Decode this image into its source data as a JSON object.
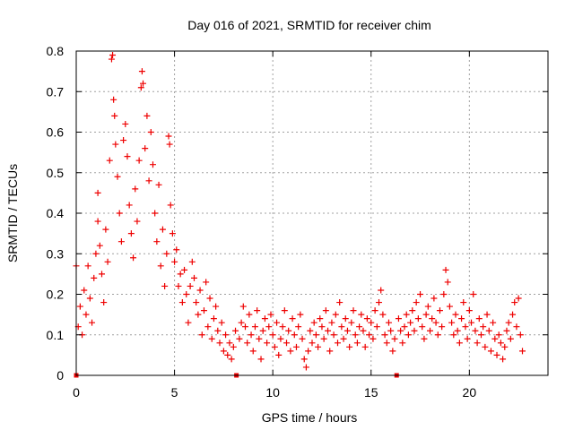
{
  "colors": {
    "series": "#ee0000",
    "grid": "#a0a0a0",
    "axis": "#000000"
  },
  "chart_data": {
    "type": "scatter",
    "title": "Day 016 of 2021, SRMTID for receiver chim",
    "xlabel": "GPS time / hours",
    "ylabel": "SRMTID / TECUs",
    "xlim": [
      0,
      24
    ],
    "ylim": [
      0,
      0.8
    ],
    "x_ticks": [
      0,
      5,
      10,
      15,
      20
    ],
    "x_tick_labels": [
      "0",
      "5",
      "10",
      "15",
      "20"
    ],
    "y_ticks": [
      0,
      0.1,
      0.2,
      0.3,
      0.4,
      0.5,
      0.6,
      0.7,
      0.8
    ],
    "y_tick_labels": [
      "0",
      "0.1",
      "0.2",
      "0.3",
      "0.4",
      "0.5",
      "0.6",
      "0.7",
      "0.8"
    ],
    "grid": true,
    "marker": "+",
    "gap_markers_x": [
      0,
      8.15,
      16.3
    ],
    "series": [
      {
        "name": "SRMTID",
        "points": [
          [
            0.0,
            0.27
          ],
          [
            0.1,
            0.12
          ],
          [
            0.2,
            0.17
          ],
          [
            0.3,
            0.1
          ],
          [
            0.4,
            0.21
          ],
          [
            0.5,
            0.15
          ],
          [
            0.6,
            0.27
          ],
          [
            0.7,
            0.19
          ],
          [
            0.8,
            0.13
          ],
          [
            0.9,
            0.24
          ],
          [
            1.0,
            0.3
          ],
          [
            1.1,
            0.45
          ],
          [
            1.1,
            0.38
          ],
          [
            1.2,
            0.32
          ],
          [
            1.3,
            0.25
          ],
          [
            1.4,
            0.18
          ],
          [
            1.5,
            0.36
          ],
          [
            1.6,
            0.28
          ],
          [
            1.7,
            0.53
          ],
          [
            1.8,
            0.78
          ],
          [
            1.85,
            0.79
          ],
          [
            1.9,
            0.68
          ],
          [
            1.95,
            0.64
          ],
          [
            2.0,
            0.57
          ],
          [
            2.1,
            0.49
          ],
          [
            2.2,
            0.4
          ],
          [
            2.3,
            0.33
          ],
          [
            2.4,
            0.58
          ],
          [
            2.5,
            0.62
          ],
          [
            2.6,
            0.54
          ],
          [
            2.7,
            0.42
          ],
          [
            2.8,
            0.35
          ],
          [
            2.9,
            0.29
          ],
          [
            3.0,
            0.46
          ],
          [
            3.1,
            0.38
          ],
          [
            3.2,
            0.53
          ],
          [
            3.3,
            0.71
          ],
          [
            3.35,
            0.75
          ],
          [
            3.4,
            0.72
          ],
          [
            3.5,
            0.56
          ],
          [
            3.6,
            0.64
          ],
          [
            3.7,
            0.48
          ],
          [
            3.8,
            0.6
          ],
          [
            3.9,
            0.52
          ],
          [
            4.0,
            0.4
          ],
          [
            4.1,
            0.33
          ],
          [
            4.2,
            0.47
          ],
          [
            4.3,
            0.27
          ],
          [
            4.4,
            0.36
          ],
          [
            4.5,
            0.22
          ],
          [
            4.6,
            0.3
          ],
          [
            4.7,
            0.59
          ],
          [
            4.75,
            0.57
          ],
          [
            4.8,
            0.42
          ],
          [
            4.9,
            0.35
          ],
          [
            5.0,
            0.28
          ],
          [
            5.1,
            0.31
          ],
          [
            5.2,
            0.22
          ],
          [
            5.3,
            0.25
          ],
          [
            5.4,
            0.18
          ],
          [
            5.5,
            0.26
          ],
          [
            5.6,
            0.2
          ],
          [
            5.7,
            0.13
          ],
          [
            5.8,
            0.22
          ],
          [
            5.9,
            0.28
          ],
          [
            6.0,
            0.24
          ],
          [
            6.1,
            0.18
          ],
          [
            6.2,
            0.15
          ],
          [
            6.3,
            0.21
          ],
          [
            6.4,
            0.1
          ],
          [
            6.5,
            0.16
          ],
          [
            6.6,
            0.23
          ],
          [
            6.7,
            0.12
          ],
          [
            6.8,
            0.19
          ],
          [
            6.9,
            0.09
          ],
          [
            7.0,
            0.14
          ],
          [
            7.1,
            0.17
          ],
          [
            7.2,
            0.11
          ],
          [
            7.3,
            0.08
          ],
          [
            7.4,
            0.13
          ],
          [
            7.5,
            0.06
          ],
          [
            7.6,
            0.1
          ],
          [
            7.7,
            0.05
          ],
          [
            7.8,
            0.08
          ],
          [
            7.9,
            0.04
          ],
          [
            8.0,
            0.07
          ],
          [
            8.1,
            0.11
          ],
          [
            8.3,
            0.09
          ],
          [
            8.4,
            0.13
          ],
          [
            8.5,
            0.17
          ],
          [
            8.6,
            0.12
          ],
          [
            8.7,
            0.08
          ],
          [
            8.8,
            0.15
          ],
          [
            8.9,
            0.1
          ],
          [
            9.0,
            0.06
          ],
          [
            9.1,
            0.12
          ],
          [
            9.2,
            0.16
          ],
          [
            9.3,
            0.09
          ],
          [
            9.4,
            0.04
          ],
          [
            9.5,
            0.11
          ],
          [
            9.6,
            0.14
          ],
          [
            9.7,
            0.08
          ],
          [
            9.8,
            0.12
          ],
          [
            9.9,
            0.15
          ],
          [
            10.0,
            0.1
          ],
          [
            10.1,
            0.07
          ],
          [
            10.2,
            0.13
          ],
          [
            10.3,
            0.05
          ],
          [
            10.4,
            0.09
          ],
          [
            10.5,
            0.12
          ],
          [
            10.6,
            0.16
          ],
          [
            10.7,
            0.08
          ],
          [
            10.8,
            0.11
          ],
          [
            10.9,
            0.06
          ],
          [
            11.0,
            0.14
          ],
          [
            11.1,
            0.1
          ],
          [
            11.2,
            0.07
          ],
          [
            11.3,
            0.12
          ],
          [
            11.4,
            0.15
          ],
          [
            11.5,
            0.09
          ],
          [
            11.6,
            0.04
          ],
          [
            11.7,
            0.02
          ],
          [
            11.8,
            0.06
          ],
          [
            11.9,
            0.11
          ],
          [
            12.0,
            0.08
          ],
          [
            12.1,
            0.13
          ],
          [
            12.2,
            0.1
          ],
          [
            12.3,
            0.07
          ],
          [
            12.4,
            0.14
          ],
          [
            12.5,
            0.12
          ],
          [
            12.6,
            0.09
          ],
          [
            12.7,
            0.16
          ],
          [
            12.8,
            0.11
          ],
          [
            12.9,
            0.06
          ],
          [
            13.0,
            0.13
          ],
          [
            13.1,
            0.1
          ],
          [
            13.2,
            0.15
          ],
          [
            13.3,
            0.08
          ],
          [
            13.4,
            0.18
          ],
          [
            13.5,
            0.12
          ],
          [
            13.6,
            0.09
          ],
          [
            13.7,
            0.14
          ],
          [
            13.8,
            0.11
          ],
          [
            13.9,
            0.07
          ],
          [
            14.0,
            0.13
          ],
          [
            14.1,
            0.16
          ],
          [
            14.2,
            0.1
          ],
          [
            14.3,
            0.08
          ],
          [
            14.4,
            0.12
          ],
          [
            14.5,
            0.15
          ],
          [
            14.6,
            0.11
          ],
          [
            14.7,
            0.07
          ],
          [
            14.8,
            0.14
          ],
          [
            14.9,
            0.1
          ],
          [
            15.0,
            0.13
          ],
          [
            15.1,
            0.09
          ],
          [
            15.2,
            0.16
          ],
          [
            15.3,
            0.12
          ],
          [
            15.4,
            0.18
          ],
          [
            15.5,
            0.21
          ],
          [
            15.6,
            0.15
          ],
          [
            15.7,
            0.1
          ],
          [
            15.8,
            0.08
          ],
          [
            15.9,
            0.13
          ],
          [
            16.0,
            0.11
          ],
          [
            16.1,
            0.06
          ],
          [
            16.2,
            0.09
          ],
          [
            16.4,
            0.14
          ],
          [
            16.5,
            0.11
          ],
          [
            16.6,
            0.08
          ],
          [
            16.7,
            0.12
          ],
          [
            16.8,
            0.15
          ],
          [
            16.9,
            0.1
          ],
          [
            17.0,
            0.13
          ],
          [
            17.1,
            0.16
          ],
          [
            17.2,
            0.11
          ],
          [
            17.3,
            0.18
          ],
          [
            17.4,
            0.14
          ],
          [
            17.5,
            0.2
          ],
          [
            17.6,
            0.12
          ],
          [
            17.7,
            0.09
          ],
          [
            17.8,
            0.15
          ],
          [
            17.9,
            0.17
          ],
          [
            18.0,
            0.11
          ],
          [
            18.1,
            0.14
          ],
          [
            18.2,
            0.19
          ],
          [
            18.3,
            0.13
          ],
          [
            18.4,
            0.1
          ],
          [
            18.5,
            0.16
          ],
          [
            18.6,
            0.12
          ],
          [
            18.7,
            0.2
          ],
          [
            18.8,
            0.26
          ],
          [
            18.9,
            0.23
          ],
          [
            19.0,
            0.17
          ],
          [
            19.1,
            0.13
          ],
          [
            19.2,
            0.1
          ],
          [
            19.3,
            0.15
          ],
          [
            19.4,
            0.11
          ],
          [
            19.5,
            0.08
          ],
          [
            19.6,
            0.14
          ],
          [
            19.7,
            0.18
          ],
          [
            19.8,
            0.12
          ],
          [
            19.9,
            0.09
          ],
          [
            20.0,
            0.16
          ],
          [
            20.1,
            0.13
          ],
          [
            20.2,
            0.2
          ],
          [
            20.3,
            0.11
          ],
          [
            20.4,
            0.08
          ],
          [
            20.5,
            0.14
          ],
          [
            20.6,
            0.1
          ],
          [
            20.7,
            0.12
          ],
          [
            20.8,
            0.07
          ],
          [
            20.9,
            0.15
          ],
          [
            21.0,
            0.11
          ],
          [
            21.1,
            0.06
          ],
          [
            21.2,
            0.13
          ],
          [
            21.3,
            0.09
          ],
          [
            21.4,
            0.05
          ],
          [
            21.5,
            0.1
          ],
          [
            21.6,
            0.08
          ],
          [
            21.7,
            0.04
          ],
          [
            21.8,
            0.07
          ],
          [
            21.9,
            0.11
          ],
          [
            22.0,
            0.13
          ],
          [
            22.1,
            0.09
          ],
          [
            22.2,
            0.15
          ],
          [
            22.3,
            0.18
          ],
          [
            22.4,
            0.12
          ],
          [
            22.5,
            0.19
          ],
          [
            22.6,
            0.1
          ],
          [
            22.7,
            0.06
          ]
        ]
      }
    ]
  }
}
